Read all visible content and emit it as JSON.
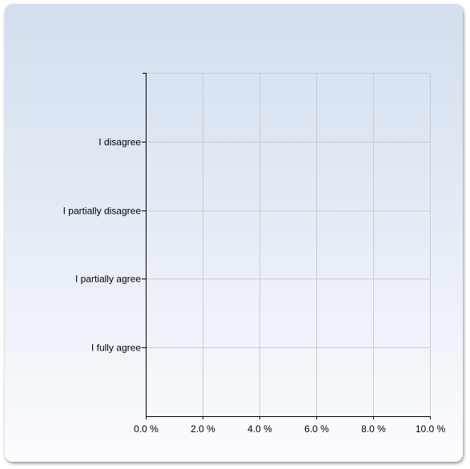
{
  "chart_data": {
    "type": "bar",
    "orientation": "horizontal",
    "title": "",
    "xlabel": "",
    "ylabel": "",
    "categories": [
      "I disagree",
      "I partially disagree",
      "I partially agree",
      "I fully agree"
    ],
    "values": [
      0,
      0,
      0,
      0
    ],
    "xlim": [
      0,
      10
    ],
    "x_ticks": [
      "0.0 %",
      "2.0 %",
      "4.0 %",
      "6.0 %",
      "8.0 %",
      "10.0 %"
    ],
    "grid": true,
    "legend": "none"
  }
}
